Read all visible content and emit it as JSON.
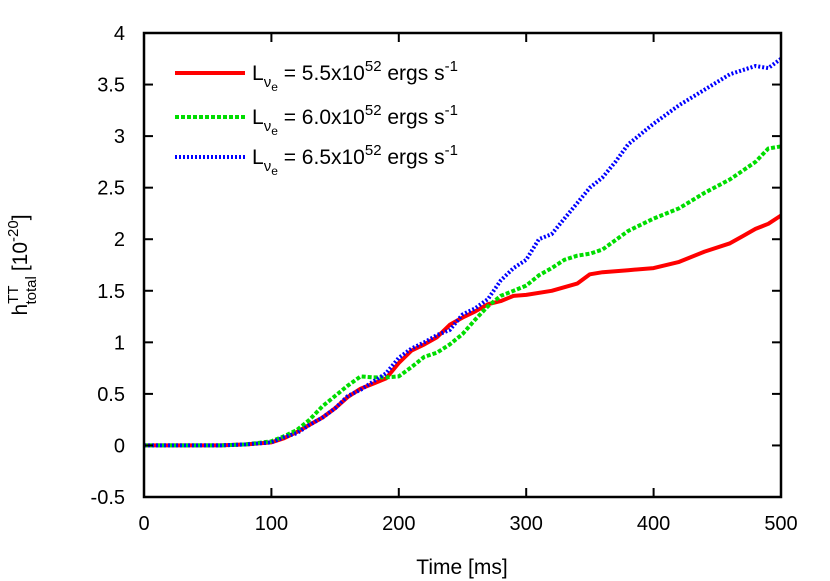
{
  "chart_data": {
    "type": "line",
    "xlabel": "Time [ms]",
    "ylabel": {
      "base": "h",
      "sup": "TT",
      "sub": "total",
      "unit_prefix": "[10",
      "unit_exp": "-20",
      "unit_suffix": "]"
    },
    "xlim": [
      0,
      500
    ],
    "ylim": [
      -0.5,
      4
    ],
    "xticks": [
      "0",
      "100",
      "200",
      "300",
      "400",
      "500"
    ],
    "yticks": [
      "-0.5",
      "0",
      "0.5",
      "1",
      "1.5",
      "2",
      "2.5",
      "3",
      "3.5",
      "4"
    ],
    "legend_position": "top-left",
    "series": [
      {
        "legend": {
          "L": "L",
          "nu": "ν",
          "e": "e",
          "eq": " = 5.5x10",
          "exp": "52",
          "unit": " ergs s",
          "unit_exp": "-1"
        },
        "color": "#ff0000",
        "style": "solid",
        "x": [
          0,
          20,
          40,
          60,
          80,
          100,
          110,
          120,
          130,
          140,
          150,
          160,
          170,
          180,
          190,
          200,
          210,
          220,
          230,
          240,
          250,
          260,
          270,
          280,
          290,
          300,
          320,
          340,
          350,
          360,
          380,
          400,
          420,
          440,
          460,
          470,
          480,
          490,
          500
        ],
        "y": [
          0,
          0,
          0,
          0,
          0.01,
          0.03,
          0.07,
          0.13,
          0.2,
          0.27,
          0.36,
          0.47,
          0.55,
          0.6,
          0.65,
          0.8,
          0.92,
          0.98,
          1.05,
          1.17,
          1.24,
          1.3,
          1.37,
          1.4,
          1.45,
          1.46,
          1.5,
          1.57,
          1.66,
          1.68,
          1.7,
          1.72,
          1.78,
          1.88,
          1.96,
          2.03,
          2.1,
          2.15,
          2.23
        ]
      },
      {
        "legend": {
          "L": "L",
          "nu": "ν",
          "e": "e",
          "eq": " = 6.0x10",
          "exp": "52",
          "unit": " ergs s",
          "unit_exp": "-1"
        },
        "color": "#00dd00",
        "style": "dashed",
        "x": [
          0,
          20,
          40,
          60,
          80,
          100,
          110,
          120,
          130,
          140,
          150,
          160,
          170,
          180,
          190,
          200,
          210,
          220,
          230,
          240,
          250,
          260,
          270,
          280,
          290,
          300,
          310,
          320,
          330,
          340,
          350,
          360,
          380,
          400,
          420,
          440,
          460,
          480,
          490,
          500
        ],
        "y": [
          0,
          0,
          0,
          0,
          0.01,
          0.04,
          0.09,
          0.15,
          0.25,
          0.38,
          0.48,
          0.58,
          0.67,
          0.66,
          0.66,
          0.67,
          0.76,
          0.86,
          0.9,
          0.98,
          1.08,
          1.22,
          1.35,
          1.45,
          1.5,
          1.55,
          1.65,
          1.72,
          1.8,
          1.84,
          1.86,
          1.9,
          2.08,
          2.2,
          2.3,
          2.45,
          2.58,
          2.75,
          2.88,
          2.9
        ]
      },
      {
        "legend": {
          "L": "L",
          "nu": "ν",
          "e": "e",
          "eq": " = 6.5x10",
          "exp": "52",
          "unit": " ergs s",
          "unit_exp": "-1"
        },
        "color": "#0000ff",
        "style": "dotted",
        "x": [
          0,
          20,
          40,
          60,
          80,
          100,
          110,
          120,
          130,
          140,
          150,
          160,
          170,
          180,
          190,
          200,
          210,
          220,
          230,
          240,
          250,
          260,
          270,
          280,
          290,
          300,
          310,
          320,
          330,
          340,
          350,
          360,
          370,
          380,
          400,
          420,
          440,
          460,
          480,
          490,
          500
        ],
        "y": [
          0,
          0,
          0,
          0,
          0.01,
          0.03,
          0.08,
          0.12,
          0.2,
          0.27,
          0.36,
          0.48,
          0.54,
          0.62,
          0.7,
          0.85,
          0.94,
          1.0,
          1.07,
          1.12,
          1.27,
          1.33,
          1.42,
          1.6,
          1.72,
          1.8,
          2.0,
          2.05,
          2.2,
          2.35,
          2.5,
          2.6,
          2.75,
          2.92,
          3.12,
          3.3,
          3.45,
          3.6,
          3.68,
          3.66,
          3.75
        ]
      }
    ]
  }
}
